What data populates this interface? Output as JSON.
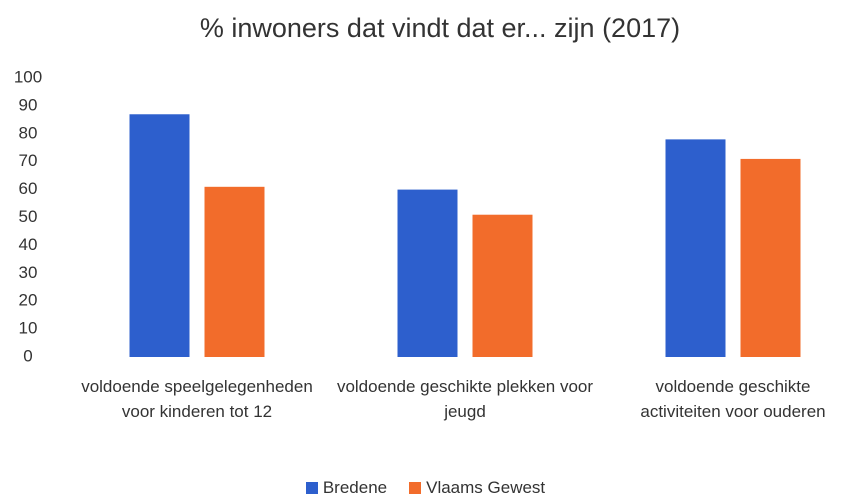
{
  "chart_data": {
    "type": "bar",
    "title": "% inwoners dat vindt dat er... zijn (2017)",
    "categories": [
      "voldoende speelgelegenheden voor kinderen tot 12",
      "voldoende geschikte plekken voor jeugd",
      "voldoende geschikte activiteiten voor ouderen"
    ],
    "series": [
      {
        "name": "Bredene",
        "color": "#2d5fcd",
        "values": [
          87,
          60,
          78
        ]
      },
      {
        "name": "Vlaams Gewest",
        "color": "#f26c2b",
        "values": [
          61,
          51,
          71
        ]
      }
    ],
    "ylim": [
      0,
      100
    ],
    "yticks": [
      0,
      10,
      20,
      30,
      40,
      50,
      60,
      70,
      80,
      90,
      100
    ],
    "grid": false,
    "legend": "bottom"
  }
}
